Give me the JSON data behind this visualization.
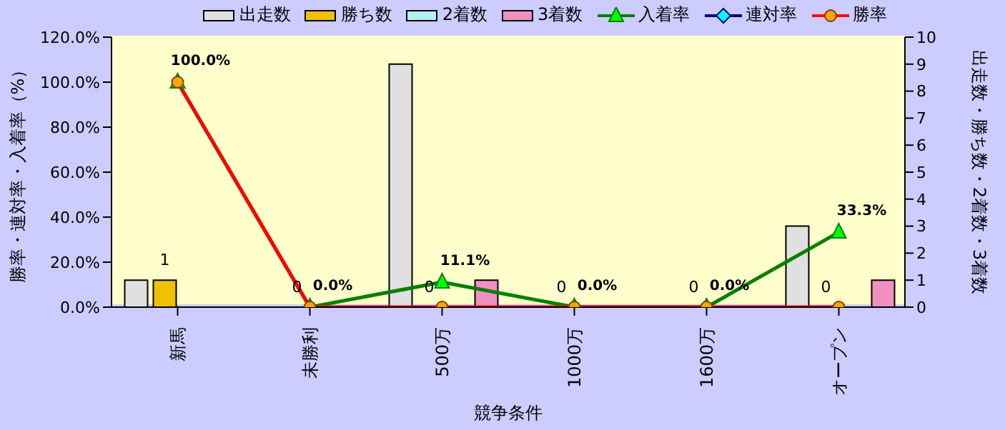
{
  "chart_data": {
    "type": "bar",
    "xlabel": "競争条件",
    "ylabel": "勝率・連対率・入着率（%）",
    "y2label": "出走数・勝ち数・2着数・3着数",
    "categories": [
      "新馬",
      "未勝利",
      "500万",
      "1000万",
      "1600万",
      "オープン"
    ],
    "series": [
      {
        "name": "出走数",
        "axis": "y2",
        "color": "#e0e0e0",
        "values": [
          1,
          0,
          9,
          0,
          0,
          3
        ]
      },
      {
        "name": "勝ち数",
        "axis": "y2",
        "color": "#f0c000",
        "values": [
          1,
          0,
          0,
          0,
          0,
          0
        ],
        "value_labels": [
          "1",
          "0",
          "0",
          "0",
          "0",
          "0"
        ]
      },
      {
        "name": "2着数",
        "axis": "y2",
        "color": "#b0f0f0",
        "values": [
          0,
          0,
          0,
          0,
          0,
          0
        ]
      },
      {
        "name": "3着数",
        "axis": "y2",
        "color": "#f090c0",
        "values": [
          0,
          0,
          1,
          0,
          0,
          1
        ]
      },
      {
        "name": "入着率",
        "type": "line",
        "color": "#008000",
        "marker": "triangle",
        "values": [
          100,
          0,
          11.1,
          0,
          0,
          33.3
        ],
        "value_labels": [
          "100.0%",
          "0.0%",
          "11.1%",
          "0.0%",
          "0.0%",
          "33.3%"
        ]
      },
      {
        "name": "連対率",
        "type": "line",
        "color": "#000080",
        "marker": "diamond",
        "values": [
          null,
          null,
          null,
          null,
          null,
          null
        ]
      },
      {
        "name": "勝率",
        "type": "line",
        "color": "#ff0000",
        "marker": "circle",
        "values": [
          100,
          0,
          0,
          0,
          0,
          0
        ]
      }
    ],
    "ylim": [
      0,
      120
    ],
    "yticks": [
      {
        "value": 0,
        "label": "0.0%"
      },
      {
        "value": 20,
        "label": "20.0%"
      },
      {
        "value": 40,
        "label": "40.0%"
      },
      {
        "value": 60,
        "label": "60.0%"
      },
      {
        "value": 80,
        "label": "80.0%"
      },
      {
        "value": 100,
        "label": "100.0%"
      },
      {
        "value": 120,
        "label": "120.0%"
      }
    ],
    "y2lim": [
      0,
      10
    ],
    "y2ticks": [
      0,
      1,
      2,
      3,
      4,
      5,
      6,
      7,
      8,
      9,
      10
    ],
    "grid": true,
    "legend": "top"
  }
}
